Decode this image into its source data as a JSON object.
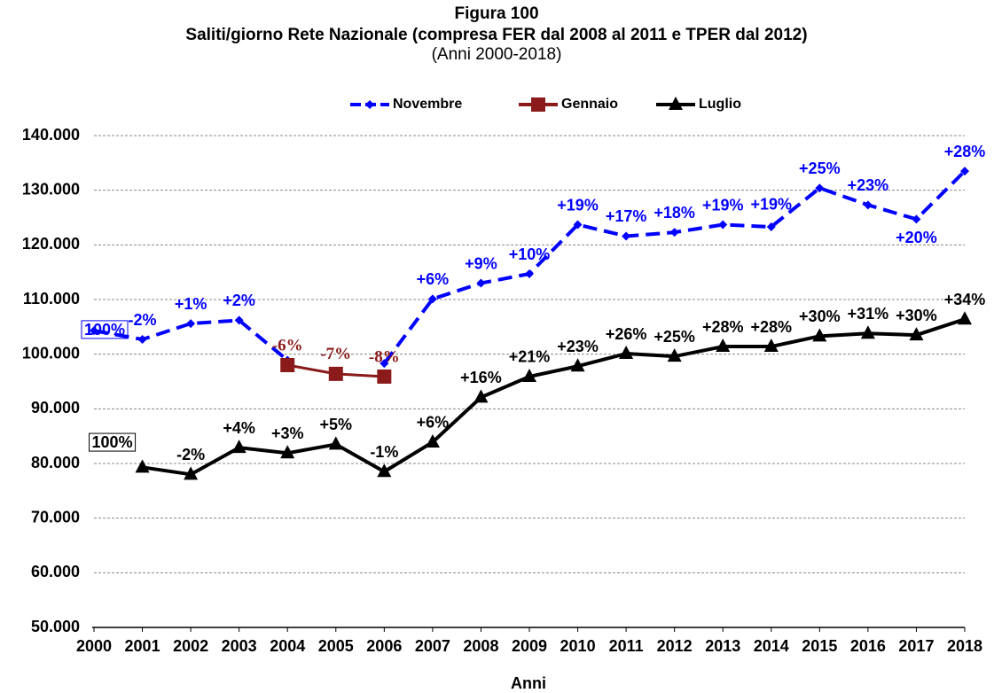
{
  "chart_data": {
    "type": "line",
    "title": "Figura 100",
    "subtitle": "Saliti/giorno Rete Nazionale (compresa FER dal 2008 al 2011 e TPER dal 2012)",
    "period": "(Anni 2000-2018)",
    "x_label": "Anni",
    "x": [
      2000,
      2001,
      2002,
      2003,
      2004,
      2005,
      2006,
      2007,
      2008,
      2009,
      2010,
      2011,
      2012,
      2013,
      2014,
      2015,
      2016,
      2017,
      2018
    ],
    "xlim": [
      2000,
      2018
    ],
    "xticks": [
      2000,
      2001,
      2002,
      2003,
      2004,
      2005,
      2006,
      2007,
      2008,
      2009,
      2010,
      2011,
      2012,
      2013,
      2014,
      2015,
      2016,
      2017,
      2018
    ],
    "ylim": [
      50000,
      140000
    ],
    "yticks": [
      {
        "value": 50000,
        "label": "50.000"
      },
      {
        "value": 60000,
        "label": "60.000"
      },
      {
        "value": 70000,
        "label": "70.000"
      },
      {
        "value": 80000,
        "label": "80.000"
      },
      {
        "value": 90000,
        "label": "90.000"
      },
      {
        "value": 100000,
        "label": "100.000"
      },
      {
        "value": 110000,
        "label": "110.000"
      },
      {
        "value": 120000,
        "label": "120.000"
      },
      {
        "value": 130000,
        "label": "130.000"
      },
      {
        "value": 140000,
        "label": "140.000"
      }
    ],
    "grid": true,
    "series": [
      {
        "name": "Novembre",
        "color": "#0000ff",
        "marker": "diamond",
        "dashed": true,
        "values": [
          104300,
          102700,
          105600,
          106200,
          98900,
          null,
          98300,
          110100,
          113000,
          114700,
          123700,
          121600,
          122300,
          123700,
          123300,
          130400,
          127300,
          124700,
          133500
        ],
        "value_labels": [
          "100%",
          "-2%",
          "+1%",
          "+2%",
          null,
          null,
          null,
          "+6%",
          "+9%",
          "+10%",
          "+19%",
          "+17%",
          "+18%",
          "+19%",
          "+19%",
          "+25%",
          "+23%",
          "+20%",
          "+28%"
        ]
      },
      {
        "name": "Gennaio",
        "color": "#8b1a1a",
        "marker": "square",
        "dashed": false,
        "values": [
          null,
          null,
          null,
          null,
          98000,
          96400,
          95900,
          null,
          null,
          null,
          null,
          null,
          null,
          null,
          null,
          null,
          null,
          null,
          null
        ],
        "value_labels": [
          null,
          null,
          null,
          null,
          "-6%",
          "-7%",
          "-8%",
          null,
          null,
          null,
          null,
          null,
          null,
          null,
          null,
          null,
          null,
          null,
          null
        ]
      },
      {
        "name": "Luglio",
        "color": "#000000",
        "marker": "triangle",
        "dashed": false,
        "values": [
          null,
          79300,
          78000,
          82900,
          81900,
          83500,
          78500,
          83900,
          92100,
          95900,
          97800,
          100100,
          99600,
          101400,
          101400,
          103300,
          103800,
          103500,
          106400
        ],
        "value_labels": [
          null,
          "100%",
          "-2%",
          "+4%",
          "+3%",
          "+5%",
          "-1%",
          "+6%",
          "+16%",
          "+21%",
          "+23%",
          "+26%",
          "+25%",
          "+28%",
          "+28%",
          "+30%",
          "+31%",
          "+30%",
          "+34%"
        ]
      }
    ]
  }
}
